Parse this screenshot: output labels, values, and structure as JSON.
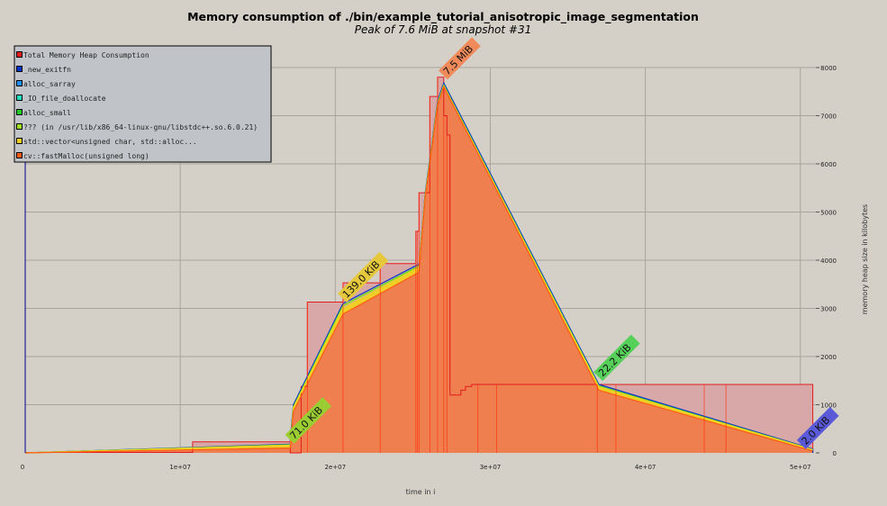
{
  "chart_data": {
    "type": "area",
    "title": "Memory consumption of ./bin/example_tutorial_anisotropic_image_segmentation",
    "subtitle": "Peak of 7.6 MiB at snapshot #31",
    "xlabel": "time in i",
    "ylabel": "memory heap size in kilobytes",
    "xlim": [
      0,
      51000000
    ],
    "ylim": [
      0,
      8000
    ],
    "x_ticks": [
      {
        "value": 0,
        "label": "0"
      },
      {
        "value": 10000000,
        "label": "1e+07"
      },
      {
        "value": 20000000,
        "label": "2e+07"
      },
      {
        "value": 30000000,
        "label": "3e+07"
      },
      {
        "value": 40000000,
        "label": "4e+07"
      },
      {
        "value": 50000000,
        "label": "5e+07"
      }
    ],
    "y_ticks": [
      {
        "value": 0,
        "label": "0"
      },
      {
        "value": 1000,
        "label": "1000"
      },
      {
        "value": 2000,
        "label": "2000"
      },
      {
        "value": 3000,
        "label": "3000"
      },
      {
        "value": 4000,
        "label": "4000"
      },
      {
        "value": 5000,
        "label": "5000"
      },
      {
        "value": 6000,
        "label": "6000"
      },
      {
        "value": 7000,
        "label": "7000"
      },
      {
        "value": 8000,
        "label": "8000"
      }
    ],
    "grid": true,
    "legend_position": "top-left",
    "series": [
      {
        "name": "Total Memory Heap Consumption",
        "color": "#e31a1c",
        "fill": "#d8a8a8",
        "style": "step",
        "x": [
          0,
          10800000,
          10800000,
          17100000,
          17100000,
          17800000,
          17800000,
          18200000,
          18200000,
          20500000,
          20500000,
          22900000,
          22900000,
          25200000,
          25200000,
          25400000,
          25400000,
          26100000,
          26100000,
          26600000,
          26600000,
          27000000,
          27000000,
          27200000,
          27200000,
          27400000,
          27400000,
          27900000,
          27900000,
          28100000,
          28100000,
          28400000,
          28400000,
          28800000,
          28800000,
          29200000,
          29200000,
          50800000,
          50800000
        ],
        "values": [
          10,
          10,
          230,
          230,
          0,
          0,
          1380,
          1380,
          3130,
          3130,
          3530,
          3530,
          3930,
          3930,
          4600,
          4600,
          5400,
          5400,
          7400,
          7400,
          7800,
          7800,
          7000,
          7000,
          6600,
          6600,
          1200,
          1200,
          1200,
          1200,
          1300,
          1300,
          1380,
          1380,
          1420,
          1420,
          1420,
          1420,
          0
        ]
      },
      {
        "name": "_new_exitfn",
        "color": "#0033cc",
        "style": "line",
        "x": [
          0,
          17100000,
          17100000,
          17100000,
          17100000,
          17300000,
          20500000,
          25400000,
          25400000,
          25800000,
          26600000,
          27000000,
          37000000,
          50800000,
          50800000
        ],
        "values": [
          0,
          180,
          180,
          300,
          300,
          1000,
          3100,
          3920,
          3920,
          5400,
          7300,
          7680,
          1420,
          80,
          0
        ]
      },
      {
        "name": "alloc_sarray",
        "color": "#1e90ff",
        "style": "line",
        "x": [],
        "values": []
      },
      {
        "name": "_IO_file_doallocate",
        "color": "#20e0c0",
        "style": "line",
        "x": [],
        "values": []
      },
      {
        "name": "alloc_small",
        "color": "#22cc22",
        "style": "line",
        "x": [
          0,
          17100000,
          17300000,
          20500000,
          25400000,
          25800000,
          26600000,
          27000000,
          37000000,
          50800000
        ],
        "values": [
          0,
          170,
          960,
          3060,
          3880,
          5360,
          7260,
          7640,
          1390,
          70
        ]
      },
      {
        "name": "??? (in /usr/lib/x86_64-linux-gnu/libstdc++.so.6.0.21)",
        "color": "#a0e020",
        "style": "line",
        "x": [
          0,
          17100000,
          17300000,
          20500000,
          25400000,
          25800000,
          26600000,
          27000000,
          37000000,
          50800000
        ],
        "values": [
          0,
          165,
          950,
          3050,
          3870,
          5350,
          7250,
          7630,
          1380,
          68
        ]
      },
      {
        "name": "std::vector<unsigned char, std::alloc...",
        "color": "#f0d020",
        "fill": "#f0d020",
        "style": "line",
        "x": [
          0,
          17100000,
          17300000,
          20500000,
          25400000,
          25800000,
          26600000,
          27000000,
          37000000,
          50800000
        ],
        "values": [
          0,
          160,
          940,
          3000,
          3850,
          5330,
          7230,
          7620,
          1370,
          65
        ]
      },
      {
        "name": "cv::fastMalloc(unsigned long)",
        "color": "#ff5a14",
        "fill": "#ee7a50",
        "style": "line",
        "x": [
          0,
          17100000,
          17300000,
          20500000,
          25400000,
          25800000,
          26600000,
          27000000,
          37000000,
          50800000
        ],
        "values": [
          0,
          100,
          860,
          2880,
          3750,
          5300,
          7200,
          7600,
          1300,
          40
        ]
      }
    ],
    "annotations": [
      {
        "text": "71.0 KiB",
        "x": 17100000,
        "y": 120,
        "bg": "#9acd32"
      },
      {
        "text": "139.0 KiB",
        "x": 20500000,
        "y": 3050,
        "bg": "#e5c83c"
      },
      {
        "text": "7.5 MiB",
        "x": 27000000,
        "y": 7680,
        "bg": "#f08a5a"
      },
      {
        "text": "22.2 KiB",
        "x": 37000000,
        "y": 1420,
        "bg": "#57d05a"
      },
      {
        "text": "2.0 KiB",
        "x": 50800000,
        "y": 80,
        "bg": "#5a5ad8"
      }
    ]
  }
}
